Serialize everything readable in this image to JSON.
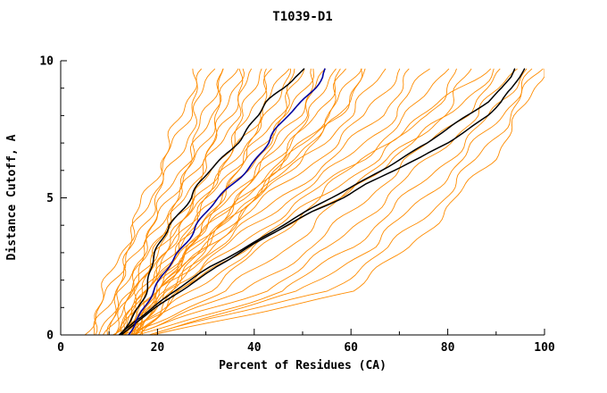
{
  "chart_data": {
    "type": "line",
    "title": "T1039-D1",
    "xlabel": "Percent of Residues (CA)",
    "ylabel": "Distance Cutoff, A",
    "xlim": [
      0,
      100
    ],
    "ylim": [
      0,
      10
    ],
    "x_major_ticks": [
      0,
      20,
      40,
      60,
      80,
      100
    ],
    "x_minor_step": 10,
    "y_major_ticks": [
      0,
      5,
      10
    ],
    "y_minor_step": 1,
    "grid": false,
    "legend": "none",
    "palette": {
      "background_models": "#ff8c00",
      "highlight_models": "#000000",
      "reference_model": "#0000a0"
    },
    "sample_y": [
      0,
      1.6,
      3.2,
      4.8,
      6.4,
      8,
      9.7
    ],
    "highlight_y": [
      0,
      0.5,
      1,
      1.5,
      2,
      2.5,
      3,
      3.5,
      4,
      4.5,
      5,
      5.5,
      6,
      6.5,
      7,
      7.5,
      8,
      8.5,
      9,
      9.4,
      9.7
    ],
    "series": [
      {
        "name": "orange-curve-01",
        "color": "#ff8c00",
        "width": 0.9,
        "wiggle": 0.9,
        "x": [
          5,
          9,
          13,
          17,
          21,
          25,
          28
        ]
      },
      {
        "name": "orange-curve-02",
        "color": "#ff8c00",
        "width": 0.9,
        "wiggle": 0.9,
        "x": [
          6,
          10,
          14,
          18,
          22,
          26,
          30
        ]
      },
      {
        "name": "orange-curve-03",
        "color": "#ff8c00",
        "width": 0.9,
        "wiggle": 0.9,
        "x": [
          7,
          11,
          15,
          19,
          24,
          28,
          31
        ]
      },
      {
        "name": "orange-curve-04",
        "color": "#ff8c00",
        "width": 0.9,
        "wiggle": 0.9,
        "x": [
          8,
          12,
          16,
          21,
          26,
          30,
          33
        ]
      },
      {
        "name": "orange-curve-05",
        "color": "#ff8c00",
        "width": 0.9,
        "wiggle": 0.9,
        "x": [
          9,
          13,
          17,
          22,
          27,
          31,
          34
        ]
      },
      {
        "name": "orange-curve-06",
        "color": "#ff8c00",
        "width": 0.9,
        "wiggle": 0.9,
        "x": [
          10,
          14,
          18,
          23,
          28,
          32,
          36
        ]
      },
      {
        "name": "orange-curve-07",
        "color": "#ff8c00",
        "width": 0.9,
        "wiggle": 0.9,
        "x": [
          10,
          14,
          19,
          24,
          29,
          34,
          37
        ]
      },
      {
        "name": "orange-curve-08",
        "color": "#ff8c00",
        "width": 0.9,
        "wiggle": 0.9,
        "x": [
          11,
          15,
          20,
          25,
          30,
          35,
          38
        ]
      },
      {
        "name": "orange-curve-09",
        "color": "#ff8c00",
        "width": 0.9,
        "wiggle": 0.9,
        "x": [
          11,
          15,
          20,
          26,
          31,
          36,
          40
        ]
      },
      {
        "name": "orange-curve-10",
        "color": "#ff8c00",
        "width": 0.9,
        "wiggle": 0.9,
        "x": [
          12,
          16,
          21,
          27,
          33,
          38,
          41
        ]
      },
      {
        "name": "orange-curve-11",
        "color": "#ff8c00",
        "width": 0.9,
        "wiggle": 0.9,
        "x": [
          12,
          16,
          22,
          28,
          34,
          39,
          43
        ]
      },
      {
        "name": "orange-curve-12",
        "color": "#ff8c00",
        "width": 0.9,
        "wiggle": 0.9,
        "x": [
          12,
          17,
          22,
          28,
          35,
          41,
          44
        ]
      },
      {
        "name": "orange-curve-13",
        "color": "#ff8c00",
        "width": 0.9,
        "wiggle": 0.9,
        "x": [
          13,
          17,
          23,
          29,
          36,
          42,
          46
        ]
      },
      {
        "name": "orange-curve-14",
        "color": "#ff8c00",
        "width": 0.9,
        "wiggle": 0.9,
        "x": [
          13,
          18,
          24,
          30,
          37,
          43,
          47
        ]
      },
      {
        "name": "orange-curve-15",
        "color": "#ff8c00",
        "width": 0.9,
        "wiggle": 0.9,
        "x": [
          13,
          18,
          24,
          31,
          38,
          45,
          49
        ]
      },
      {
        "name": "orange-curve-16",
        "color": "#ff8c00",
        "width": 0.9,
        "wiggle": 0.9,
        "x": [
          14,
          19,
          25,
          32,
          39,
          46,
          50
        ]
      },
      {
        "name": "orange-curve-17",
        "color": "#ff8c00",
        "width": 0.9,
        "wiggle": 0.9,
        "x": [
          14,
          19,
          26,
          33,
          40,
          47,
          52
        ]
      },
      {
        "name": "orange-curve-18",
        "color": "#ff8c00",
        "width": 0.9,
        "wiggle": 0.9,
        "x": [
          14,
          20,
          26,
          34,
          42,
          49,
          53
        ]
      },
      {
        "name": "orange-curve-19",
        "color": "#ff8c00",
        "width": 0.9,
        "wiggle": 0.9,
        "x": [
          15,
          20,
          27,
          35,
          43,
          50,
          55
        ]
      },
      {
        "name": "orange-curve-20",
        "color": "#ff8c00",
        "width": 0.9,
        "wiggle": 0.9,
        "x": [
          15,
          21,
          28,
          36,
          44,
          52,
          56
        ]
      },
      {
        "name": "orange-curve-21",
        "color": "#ff8c00",
        "width": 0.9,
        "wiggle": 0.9,
        "x": [
          15,
          21,
          29,
          37,
          45,
          53,
          58
        ]
      },
      {
        "name": "orange-curve-22",
        "color": "#ff8c00",
        "width": 0.9,
        "wiggle": 0.9,
        "x": [
          16,
          22,
          30,
          38,
          47,
          55,
          59
        ]
      },
      {
        "name": "orange-curve-23",
        "color": "#ff8c00",
        "width": 0.9,
        "wiggle": 0.9,
        "x": [
          16,
          22,
          30,
          39,
          48,
          56,
          61
        ]
      },
      {
        "name": "orange-curve-24",
        "color": "#ff8c00",
        "width": 0.9,
        "wiggle": 0.9,
        "x": [
          16,
          23,
          31,
          40,
          49,
          58,
          62
        ]
      },
      {
        "name": "orange-curve-25",
        "color": "#ff8c00",
        "width": 0.9,
        "wiggle": 0.9,
        "x": [
          12,
          18,
          26,
          36,
          47,
          57,
          64
        ]
      },
      {
        "name": "orange-curve-26",
        "color": "#ff8c00",
        "width": 0.9,
        "wiggle": 0.9,
        "x": [
          13,
          19,
          28,
          38,
          50,
          60,
          67
        ]
      },
      {
        "name": "orange-curve-27",
        "color": "#ff8c00",
        "width": 0.9,
        "wiggle": 0.9,
        "x": [
          13,
          20,
          30,
          41,
          53,
          63,
          70
        ]
      },
      {
        "name": "orange-curve-28",
        "color": "#ff8c00",
        "width": 0.9,
        "wiggle": 0.9,
        "x": [
          14,
          21,
          32,
          44,
          56,
          66,
          73
        ]
      },
      {
        "name": "orange-curve-29",
        "color": "#ff8c00",
        "width": 0.9,
        "wiggle": 0.9,
        "x": [
          14,
          22,
          34,
          46,
          59,
          69,
          76
        ]
      },
      {
        "name": "orange-curve-30",
        "color": "#ff8c00",
        "width": 0.9,
        "wiggle": 0.9,
        "x": [
          15,
          24,
          36,
          49,
          62,
          72,
          79
        ]
      },
      {
        "name": "orange-curve-31",
        "color": "#ff8c00",
        "width": 0.9,
        "wiggle": 0.9,
        "x": [
          15,
          25,
          38,
          52,
          65,
          76,
          82
        ]
      },
      {
        "name": "orange-curve-32",
        "color": "#ff8c00",
        "width": 0.9,
        "wiggle": 0.9,
        "x": [
          16,
          27,
          40,
          55,
          68,
          79,
          85
        ]
      },
      {
        "name": "orange-curve-33",
        "color": "#ff8c00",
        "width": 0.9,
        "wiggle": 0.9,
        "x": [
          12,
          30,
          42,
          52,
          62,
          75,
          88
        ]
      },
      {
        "name": "orange-curve-34",
        "color": "#ff8c00",
        "width": 0.9,
        "wiggle": 0.9,
        "x": [
          13,
          34,
          47,
          57,
          68,
          80,
          90
        ]
      },
      {
        "name": "orange-curve-35",
        "color": "#ff8c00",
        "width": 0.9,
        "wiggle": 0.9,
        "x": [
          14,
          38,
          52,
          62,
          72,
          83,
          92
        ]
      },
      {
        "name": "orange-curve-36",
        "color": "#ff8c00",
        "width": 0.9,
        "wiggle": 0.9,
        "x": [
          15,
          42,
          56,
          66,
          76,
          86,
          94
        ]
      },
      {
        "name": "orange-curve-37",
        "color": "#ff8c00",
        "width": 0.9,
        "wiggle": 0.9,
        "x": [
          16,
          46,
          60,
          70,
          80,
          89,
          96
        ]
      },
      {
        "name": "orange-curve-38",
        "color": "#ff8c00",
        "width": 0.9,
        "wiggle": 0.9,
        "x": [
          17,
          50,
          64,
          74,
          83,
          91,
          98
        ]
      },
      {
        "name": "orange-curve-39",
        "color": "#ff8c00",
        "width": 0.9,
        "wiggle": 0.9,
        "x": [
          18,
          55,
          68,
          78,
          86,
          93,
          99
        ]
      },
      {
        "name": "orange-curve-40",
        "color": "#ff8c00",
        "width": 0.9,
        "wiggle": 0.9,
        "x": [
          20,
          60,
          72,
          81,
          89,
          95,
          100
        ]
      },
      {
        "name": "black-curve-right-a",
        "color": "#000000",
        "width": 1.5,
        "wiggle": 0.3,
        "y_grid": "highlight_y",
        "x": [
          12,
          15,
          19,
          23,
          27,
          31,
          36,
          41,
          46,
          51,
          56,
          61,
          66,
          71,
          76,
          80,
          84,
          88,
          91,
          93,
          94
        ]
      },
      {
        "name": "black-curve-right-b",
        "color": "#000000",
        "width": 1.5,
        "wiggle": 0.3,
        "y_grid": "highlight_y",
        "x": [
          12.5,
          16,
          20,
          24,
          28,
          32,
          37,
          42,
          47,
          52,
          58,
          63,
          69,
          75,
          80,
          84,
          88,
          91,
          93.5,
          95,
          96
        ]
      },
      {
        "name": "black-curve-left",
        "color": "#000000",
        "width": 1.5,
        "wiggle": 0.5,
        "y_grid": "highlight_y",
        "x": [
          13,
          14.5,
          16,
          17,
          18,
          19,
          20,
          21,
          22,
          24.5,
          27,
          29,
          31,
          33.5,
          36,
          38.5,
          41,
          43,
          46,
          48,
          50
        ]
      },
      {
        "name": "blue-curve",
        "color": "#0000a0",
        "width": 1.6,
        "wiggle": 0.5,
        "y_grid": "highlight_y",
        "x": [
          14,
          15,
          17,
          19,
          21,
          22.5,
          24,
          26,
          28,
          30.5,
          33,
          35.5,
          38,
          40.5,
          43,
          45,
          47,
          49.5,
          52,
          54,
          55
        ]
      }
    ]
  }
}
